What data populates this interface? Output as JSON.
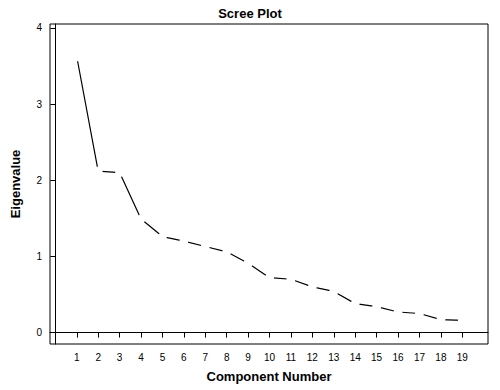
{
  "chart_data": {
    "type": "line",
    "title": "Scree Plot",
    "xlabel": "Component Number",
    "ylabel": "Eigenvalue",
    "x": [
      1,
      2,
      3,
      4,
      5,
      6,
      7,
      8,
      9,
      10,
      11,
      12,
      13,
      14,
      15,
      16,
      17,
      18,
      19
    ],
    "values": [
      3.62,
      2.12,
      2.1,
      1.49,
      1.26,
      1.2,
      1.13,
      1.06,
      0.91,
      0.72,
      0.7,
      0.6,
      0.54,
      0.38,
      0.34,
      0.27,
      0.25,
      0.17,
      0.16
    ],
    "color": "#000000",
    "marker": "circle",
    "line_style": "solid",
    "xlim": [
      -0.25,
      20.2
    ],
    "xticks": [
      1,
      2,
      3,
      4,
      5,
      6,
      7,
      8,
      9,
      10,
      11,
      12,
      13,
      14,
      15,
      16,
      17,
      18,
      19
    ],
    "ylim": [
      -0.15,
      4.05
    ],
    "yticks": [
      0,
      1,
      2,
      3,
      4
    ],
    "grid": false
  }
}
